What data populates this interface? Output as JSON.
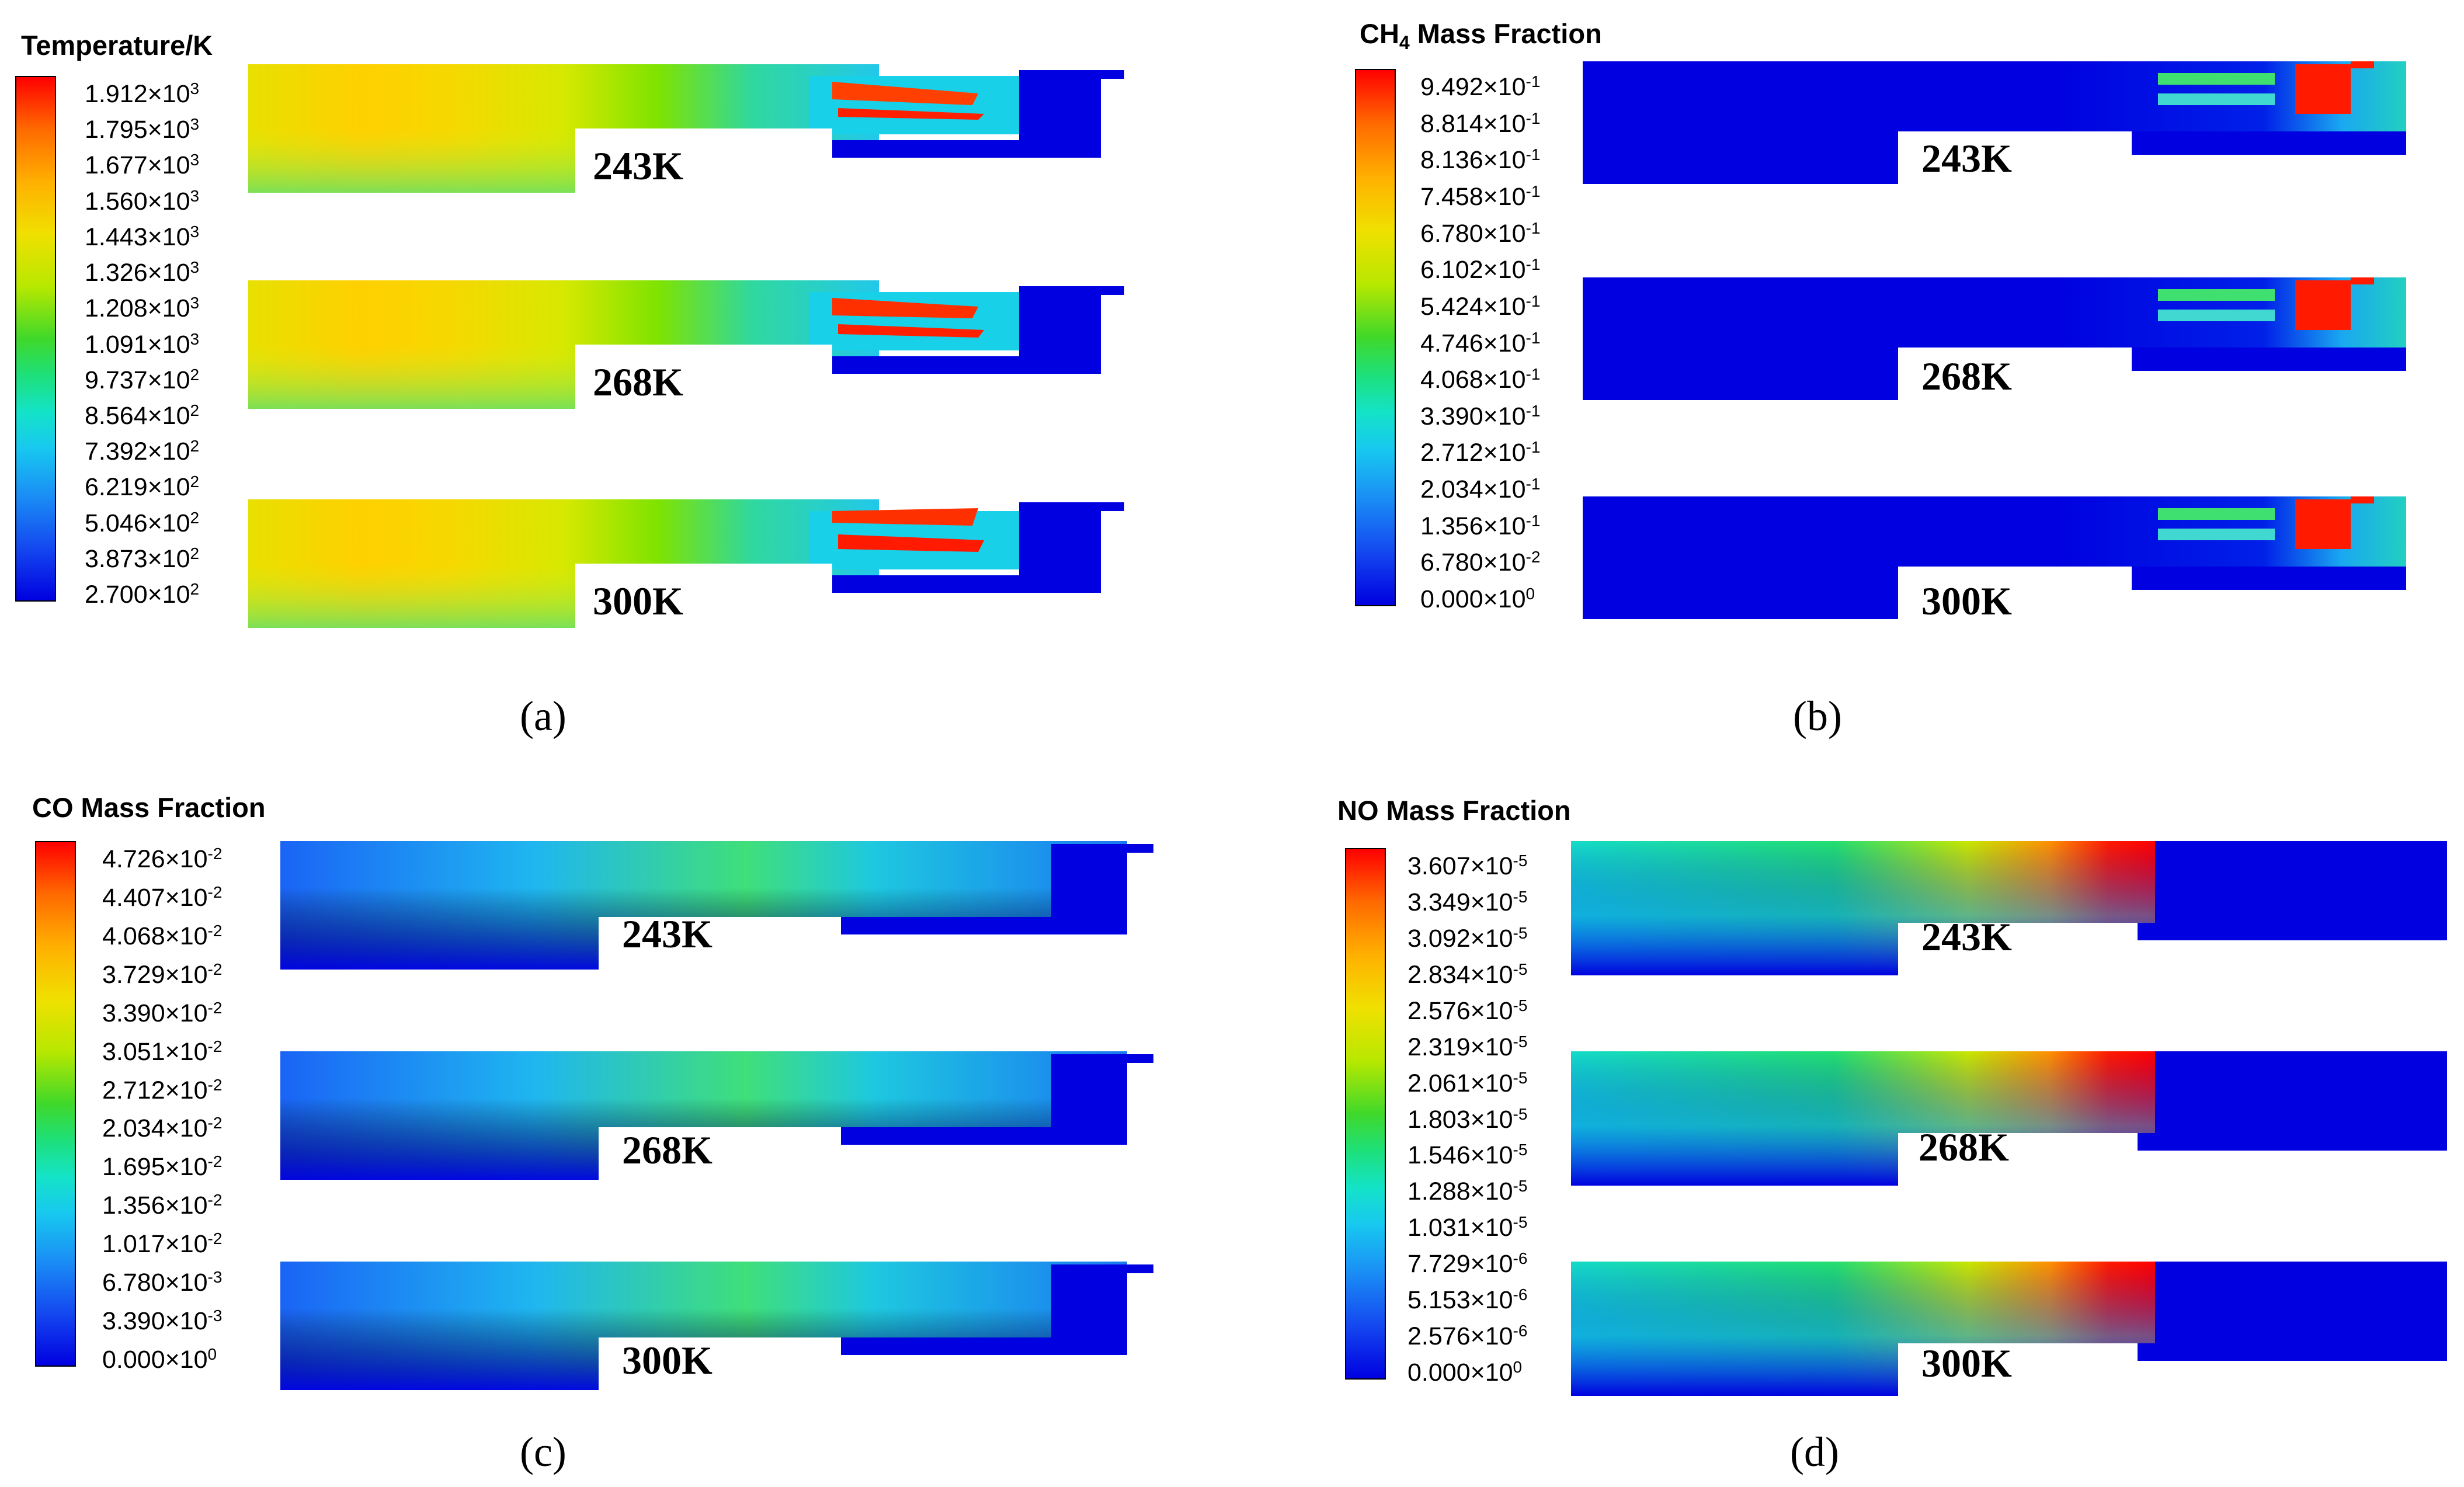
{
  "panels": [
    {
      "id": "a",
      "title_main": "Temperature/K",
      "title_sub": "",
      "title_rest": "",
      "caption": "(a)",
      "colorbar_ticks": [
        {
          "m": "1.912",
          "e": "3"
        },
        {
          "m": "1.795",
          "e": "3"
        },
        {
          "m": "1.677",
          "e": "3"
        },
        {
          "m": "1.560",
          "e": "3"
        },
        {
          "m": "1.443",
          "e": "3"
        },
        {
          "m": "1.326",
          "e": "3"
        },
        {
          "m": "1.208",
          "e": "3"
        },
        {
          "m": "1.091",
          "e": "3"
        },
        {
          "m": "9.737",
          "e": "2"
        },
        {
          "m": "8.564",
          "e": "2"
        },
        {
          "m": "7.392",
          "e": "2"
        },
        {
          "m": "6.219",
          "e": "2"
        },
        {
          "m": "5.046",
          "e": "2"
        },
        {
          "m": "3.873",
          "e": "2"
        },
        {
          "m": "2.700",
          "e": "2"
        }
      ],
      "cases": [
        "243K",
        "268K",
        "300K"
      ]
    },
    {
      "id": "b",
      "title_main": "CH",
      "title_sub": "4",
      "title_rest": " Mass Fraction",
      "caption": "(b)",
      "colorbar_ticks": [
        {
          "m": "9.492",
          "e": "-1"
        },
        {
          "m": "8.814",
          "e": "-1"
        },
        {
          "m": "8.136",
          "e": "-1"
        },
        {
          "m": "7.458",
          "e": "-1"
        },
        {
          "m": "6.780",
          "e": "-1"
        },
        {
          "m": "6.102",
          "e": "-1"
        },
        {
          "m": "5.424",
          "e": "-1"
        },
        {
          "m": "4.746",
          "e": "-1"
        },
        {
          "m": "4.068",
          "e": "-1"
        },
        {
          "m": "3.390",
          "e": "-1"
        },
        {
          "m": "2.712",
          "e": "-1"
        },
        {
          "m": "2.034",
          "e": "-1"
        },
        {
          "m": "1.356",
          "e": "-1"
        },
        {
          "m": "6.780",
          "e": "-2"
        },
        {
          "m": "0.000",
          "e": "0"
        }
      ],
      "cases": [
        "243K",
        "268K",
        "300K"
      ]
    },
    {
      "id": "c",
      "title_main": "CO Mass Fraction",
      "title_sub": "",
      "title_rest": "",
      "caption": "(c)",
      "colorbar_ticks": [
        {
          "m": "4.726",
          "e": "-2"
        },
        {
          "m": "4.407",
          "e": "-2"
        },
        {
          "m": "4.068",
          "e": "-2"
        },
        {
          "m": "3.729",
          "e": "-2"
        },
        {
          "m": "3.390",
          "e": "-2"
        },
        {
          "m": "3.051",
          "e": "-2"
        },
        {
          "m": "2.712",
          "e": "-2"
        },
        {
          "m": "2.034",
          "e": "-2"
        },
        {
          "m": "1.695",
          "e": "-2"
        },
        {
          "m": "1.356",
          "e": "-2"
        },
        {
          "m": "1.017",
          "e": "-2"
        },
        {
          "m": "6.780",
          "e": "-3"
        },
        {
          "m": "3.390",
          "e": "-3"
        },
        {
          "m": "0.000",
          "e": "0"
        }
      ],
      "cases": [
        "243K",
        "268K",
        "300K"
      ]
    },
    {
      "id": "d",
      "title_main": "NO Mass Fraction",
      "title_sub": "",
      "title_rest": "",
      "caption": "(d)",
      "colorbar_ticks": [
        {
          "m": "3.607",
          "e": "-5"
        },
        {
          "m": "3.349",
          "e": "-5"
        },
        {
          "m": "3.092",
          "e": "-5"
        },
        {
          "m": "2.834",
          "e": "-5"
        },
        {
          "m": "2.576",
          "e": "-5"
        },
        {
          "m": "2.319",
          "e": "-5"
        },
        {
          "m": "2.061",
          "e": "-5"
        },
        {
          "m": "1.803",
          "e": "-5"
        },
        {
          "m": "1.546",
          "e": "-5"
        },
        {
          "m": "1.288",
          "e": "-5"
        },
        {
          "m": "1.031",
          "e": "-5"
        },
        {
          "m": "7.729",
          "e": "-6"
        },
        {
          "m": "5.153",
          "e": "-6"
        },
        {
          "m": "2.576",
          "e": "-6"
        },
        {
          "m": "0.000",
          "e": "0"
        }
      ],
      "cases": [
        "243K",
        "268K",
        "300K"
      ]
    }
  ],
  "times_sign": "×",
  "base": "10"
}
